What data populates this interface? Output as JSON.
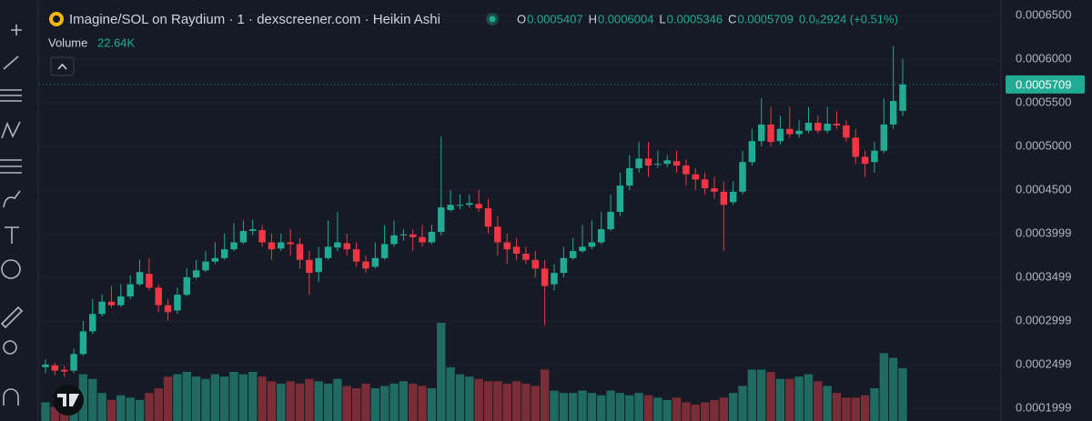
{
  "chart_data": {
    "type": "candlestick",
    "title": "Imagine/SOL on Raydium · 1 · dexscreener.com · Heikin Ashi",
    "ohlc_labels": [
      "O",
      "H",
      "L",
      "C"
    ],
    "change_label": "0.0₅2924 (+0.51%)",
    "volume_title": "Volume",
    "volume_label": "22.64K",
    "up_color": "#22ab94",
    "down_color": "#f23645",
    "up_volume_color": "#1f6b62",
    "down_volume_color": "#7a2c37",
    "ylim": [
      0.0001853,
      0.0006677
    ],
    "yticks": [
      {
        "value": 0.00065,
        "label": "0.0006500"
      },
      {
        "value": 0.0006,
        "label": "0.0006000"
      },
      {
        "value": 0.00055,
        "label": "0.0005500"
      },
      {
        "value": 0.0005,
        "label": "0.0005000"
      },
      {
        "value": 0.00045,
        "label": "0.0004500"
      },
      0.0003999,
      0.0003499,
      0.0002999,
      0.0002499,
      0.0001999
    ],
    "grid": true,
    "open": [
      0.000247,
      0.000249,
      0.000244,
      0.000243,
      0.000262,
      0.000288,
      0.000308,
      0.000322,
      0.000318,
      0.000328,
      0.000342,
      0.000354,
      0.000338,
      0.000318,
      0.000312,
      0.00033,
      0.00035,
      0.000358,
      0.000368,
      0.000372,
      0.000382,
      0.00039,
      0.000403,
      0.000404,
      0.00039,
      0.000383,
      0.00039,
      0.000388,
      0.00037,
      0.000356,
      0.000372,
      0.000384,
      0.000389,
      0.000382,
      0.000368,
      0.000362,
      0.000372,
      0.000388,
      0.000398,
      0.000399,
      0.000396,
      0.00039,
      0.000402,
      0.000427,
      0.000432,
      0.000433,
      0.000434,
      0.000429,
      0.000408,
      0.00039,
      0.000385,
      0.000377,
      0.00037,
      0.00036,
      0.000342,
      0.000355,
      0.000372,
      0.00038,
      0.000385,
      0.00039,
      0.000405,
      0.000425,
      0.000455,
      0.000475,
      0.000486,
      0.000479,
      0.00048,
      0.000483,
      0.000478,
      0.000468,
      0.000462,
      0.000452,
      0.000448,
      0.000436,
      0.000448,
      0.000482,
      0.000506,
      0.000525,
      0.000506,
      0.00052,
      0.000514,
      0.000518,
      0.000527,
      0.000518,
      0.000526,
      0.000524,
      0.00051,
      0.000488,
      0.000482,
      0.000495,
      0.000525,
      0.0005407
    ],
    "high": [
      0.000256,
      0.000252,
      0.000248,
      0.000268,
      0.0003,
      0.000325,
      0.00033,
      0.00034,
      0.000342,
      0.000352,
      0.00037,
      0.000372,
      0.000342,
      0.000325,
      0.000338,
      0.00036,
      0.00037,
      0.00038,
      0.00039,
      0.0004,
      0.000412,
      0.000415,
      0.000416,
      0.00041,
      0.0004,
      0.0004,
      0.000405,
      0.000395,
      0.00038,
      0.000385,
      0.000415,
      0.000425,
      0.0004,
      0.00039,
      0.000375,
      0.00039,
      0.00041,
      0.000415,
      0.000405,
      0.000405,
      0.00041,
      0.00041,
      0.000511,
      0.00045,
      0.000445,
      0.000445,
      0.00045,
      0.00044,
      0.00042,
      0.0004,
      0.000395,
      0.000385,
      0.00038,
      0.00037,
      0.000365,
      0.000385,
      0.000395,
      0.00041,
      0.000415,
      0.000425,
      0.000445,
      0.00047,
      0.00049,
      0.000505,
      0.000505,
      0.000495,
      0.00049,
      0.000495,
      0.000485,
      0.000475,
      0.00047,
      0.000465,
      0.00046,
      0.00046,
      0.000495,
      0.00052,
      0.000555,
      0.000545,
      0.000535,
      0.000545,
      0.00053,
      0.000545,
      0.000535,
      0.000545,
      0.00054,
      0.00053,
      0.00052,
      0.000495,
      0.000505,
      0.000555,
      0.000615,
      0.0006004
    ],
    "low": [
      0.00024,
      0.000238,
      0.000236,
      0.00024,
      0.00026,
      0.000285,
      0.000305,
      0.000315,
      0.000316,
      0.000325,
      0.00034,
      0.000335,
      0.00031,
      0.0003,
      0.000308,
      0.000328,
      0.000348,
      0.000356,
      0.000365,
      0.00037,
      0.00038,
      0.000388,
      0.000398,
      0.000385,
      0.00037,
      0.00038,
      0.000375,
      0.00036,
      0.00033,
      0.000345,
      0.00037,
      0.00038,
      0.000375,
      0.000362,
      0.000355,
      0.00036,
      0.00037,
      0.000385,
      0.000392,
      0.00038,
      0.000385,
      0.000388,
      0.000398,
      0.000425,
      0.000428,
      0.00043,
      0.000425,
      0.0004,
      0.000375,
      0.000365,
      0.00037,
      0.000365,
      0.00035,
      0.000295,
      0.000335,
      0.00035,
      0.00037,
      0.000378,
      0.000382,
      0.000388,
      0.000403,
      0.00042,
      0.00045,
      0.00047,
      0.000465,
      0.000475,
      0.000476,
      0.00047,
      0.000455,
      0.00045,
      0.000445,
      0.00044,
      0.00038,
      0.000433,
      0.000445,
      0.000478,
      0.0005,
      0.0005,
      0.000502,
      0.00051,
      0.00051,
      0.000515,
      0.000515,
      0.000515,
      0.00052,
      0.000505,
      0.00048,
      0.000465,
      0.00047,
      0.000492,
      0.00052,
      0.0005346
    ],
    "close": [
      0.00025,
      0.000243,
      0.000242,
      0.000262,
      0.000288,
      0.000308,
      0.000322,
      0.000318,
      0.000328,
      0.000342,
      0.000356,
      0.000338,
      0.000318,
      0.00031,
      0.00033,
      0.00035,
      0.000358,
      0.000368,
      0.000372,
      0.000382,
      0.00039,
      0.000403,
      0.000405,
      0.00039,
      0.000382,
      0.00039,
      0.000388,
      0.00037,
      0.000355,
      0.000372,
      0.000385,
      0.00039,
      0.000382,
      0.000368,
      0.00036,
      0.000372,
      0.000388,
      0.000398,
      0.000399,
      0.000396,
      0.00039,
      0.000402,
      0.00043,
      0.000433,
      0.000433,
      0.000435,
      0.000429,
      0.000408,
      0.00039,
      0.000382,
      0.000377,
      0.00037,
      0.00036,
      0.00034,
      0.000355,
      0.000372,
      0.00038,
      0.000385,
      0.00039,
      0.000405,
      0.000425,
      0.000455,
      0.000475,
      0.000486,
      0.000478,
      0.00048,
      0.000484,
      0.000478,
      0.000468,
      0.000462,
      0.000452,
      0.000448,
      0.000433,
      0.000448,
      0.000482,
      0.000506,
      0.000525,
      0.000505,
      0.00052,
      0.000514,
      0.000518,
      0.000527,
      0.000518,
      0.000526,
      0.000524,
      0.00051,
      0.000488,
      0.00048,
      0.000495,
      0.000525,
      0.000552,
      0.0005709
    ],
    "volume": [
      8000,
      6000,
      12000,
      14000,
      20000,
      18000,
      12000,
      9000,
      11000,
      10000,
      9000,
      12000,
      14000,
      19000,
      20000,
      21000,
      19000,
      18000,
      20000,
      19000,
      21000,
      20000,
      21000,
      19000,
      17000,
      16000,
      17000,
      16000,
      18000,
      17000,
      16000,
      18000,
      15000,
      14000,
      16000,
      14000,
      15000,
      16000,
      17000,
      16000,
      15000,
      14000,
      42000,
      23000,
      20000,
      19000,
      18000,
      17000,
      17000,
      16000,
      17000,
      16000,
      15000,
      22000,
      13000,
      12000,
      12000,
      13000,
      12000,
      11000,
      13000,
      12000,
      11000,
      12000,
      11000,
      10000,
      9000,
      10000,
      8000,
      7000,
      8000,
      9000,
      10000,
      12000,
      15000,
      22000,
      22000,
      21000,
      18000,
      18000,
      19000,
      20000,
      17000,
      15000,
      12000,
      10000,
      10000,
      11000,
      14000,
      29000,
      27000,
      22640
    ]
  }
}
